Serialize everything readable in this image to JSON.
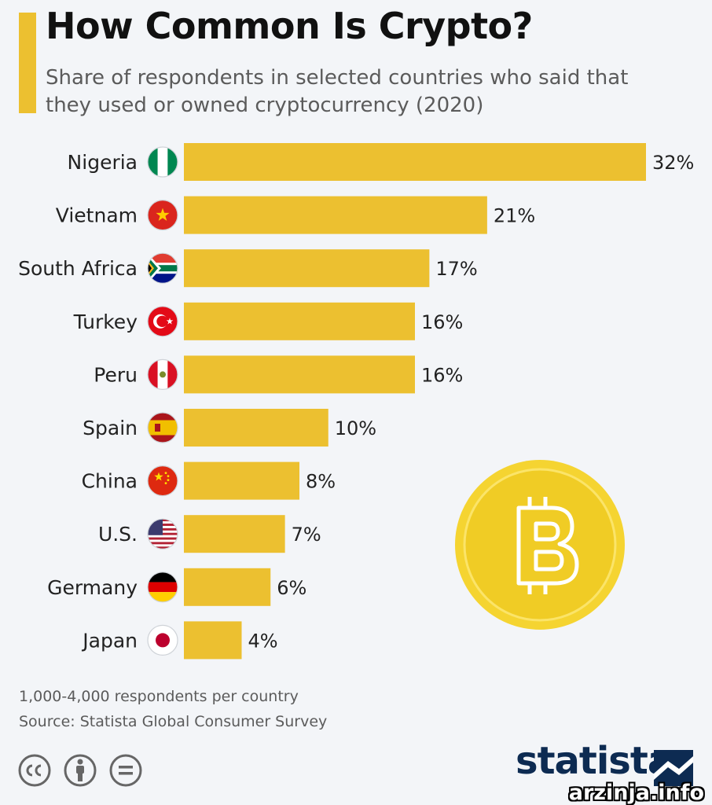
{
  "header": {
    "title": "How Common Is Crypto?",
    "subtitle": "Share of respondents in selected countries who said that they used or owned cryptocurrency (2020)"
  },
  "chart_data": {
    "type": "bar",
    "orientation": "horizontal",
    "title": "How Common Is Crypto?",
    "subtitle": "Share of respondents in selected countries who said that they used or owned cryptocurrency (2020)",
    "categories": [
      "Nigeria",
      "Vietnam",
      "South Africa",
      "Turkey",
      "Peru",
      "Spain",
      "China",
      "U.S.",
      "Germany",
      "Japan"
    ],
    "values": [
      32,
      21,
      17,
      16,
      16,
      10,
      8,
      7,
      6,
      4
    ],
    "value_labels": [
      "32%",
      "21%",
      "17%",
      "16%",
      "16%",
      "10%",
      "8%",
      "7%",
      "6%",
      "4%"
    ],
    "unit": "%",
    "xlim": [
      0,
      32
    ],
    "grid": false,
    "bar_color": "#ecc030"
  },
  "flags": [
    "nigeria-flag-icon",
    "vietnam-flag-icon",
    "south-africa-flag-icon",
    "turkey-flag-icon",
    "peru-flag-icon",
    "spain-flag-icon",
    "china-flag-icon",
    "us-flag-icon",
    "germany-flag-icon",
    "japan-flag-icon"
  ],
  "footer": {
    "note": "1,000-4,000 respondents per country",
    "source": "Source: Statista Global Consumer Survey",
    "logo": "statista",
    "license_icons": [
      "cc-icon",
      "attribution-icon",
      "no-derivatives-icon"
    ]
  },
  "watermark": "arzinja.info",
  "colors": {
    "accent": "#ecc030",
    "background": "#f3f5f8",
    "brand": "#0d2b52",
    "coin": "#f5d431"
  }
}
